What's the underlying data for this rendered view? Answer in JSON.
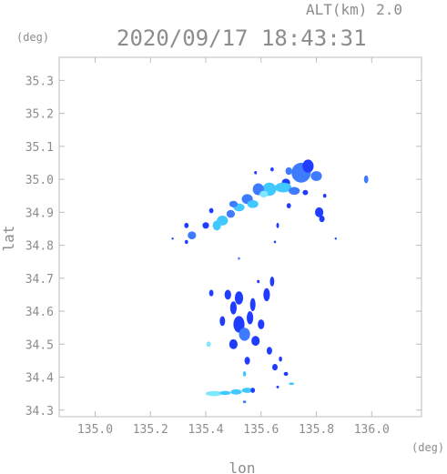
{
  "header": {
    "altitude_label": "ALT(km) 2.0",
    "timestamp": "2020/09/17 18:43:31",
    "y_unit": "(deg)",
    "x_unit": "(deg)"
  },
  "chart_data": {
    "type": "scatter",
    "title": "2020/09/17 18:43:31",
    "subtitle": "ALT(km) 2.0",
    "xlabel": "lon",
    "ylabel": "lat",
    "xlim": [
      134.87,
      136.18
    ],
    "ylim": [
      34.28,
      35.37
    ],
    "x_ticks": [
      135.0,
      135.2,
      135.4,
      135.6,
      135.8,
      136.0
    ],
    "y_ticks": [
      34.3,
      34.4,
      34.5,
      34.6,
      34.7,
      34.8,
      34.9,
      35.0,
      35.1,
      35.2,
      35.3
    ],
    "x_tick_labels": [
      "135.0",
      "135.2",
      "135.4",
      "135.6",
      "135.8",
      "136.0"
    ],
    "y_tick_labels": [
      "34.3",
      "34.4",
      "34.5",
      "34.6",
      "34.7",
      "34.8",
      "34.9",
      "35.0",
      "35.1",
      "35.2",
      "35.3"
    ],
    "grid": false,
    "colors": {
      "low": "#1f3cff",
      "mid": "#3f7bff",
      "high": "#40c8ff",
      "peak": "#7fe8ff"
    },
    "echo_cells": [
      {
        "lon": 135.745,
        "lat": 35.02,
        "rx": 0.035,
        "ry": 0.03,
        "level": "mid"
      },
      {
        "lon": 135.77,
        "lat": 35.04,
        "rx": 0.02,
        "ry": 0.02,
        "level": "low"
      },
      {
        "lon": 135.8,
        "lat": 35.01,
        "rx": 0.02,
        "ry": 0.015,
        "level": "mid"
      },
      {
        "lon": 135.7,
        "lat": 35.025,
        "rx": 0.012,
        "ry": 0.012,
        "level": "mid"
      },
      {
        "lon": 135.69,
        "lat": 34.99,
        "rx": 0.015,
        "ry": 0.012,
        "level": "low"
      },
      {
        "lon": 135.68,
        "lat": 34.975,
        "rx": 0.03,
        "ry": 0.015,
        "level": "high"
      },
      {
        "lon": 135.72,
        "lat": 34.965,
        "rx": 0.02,
        "ry": 0.012,
        "level": "mid"
      },
      {
        "lon": 135.76,
        "lat": 34.96,
        "rx": 0.01,
        "ry": 0.008,
        "level": "low"
      },
      {
        "lon": 135.63,
        "lat": 34.97,
        "rx": 0.025,
        "ry": 0.02,
        "level": "high"
      },
      {
        "lon": 135.59,
        "lat": 34.97,
        "rx": 0.02,
        "ry": 0.018,
        "level": "mid"
      },
      {
        "lon": 135.61,
        "lat": 34.955,
        "rx": 0.015,
        "ry": 0.01,
        "level": "peak"
      },
      {
        "lon": 135.55,
        "lat": 34.94,
        "rx": 0.02,
        "ry": 0.015,
        "level": "mid"
      },
      {
        "lon": 135.57,
        "lat": 34.925,
        "rx": 0.02,
        "ry": 0.012,
        "level": "high"
      },
      {
        "lon": 135.52,
        "lat": 34.915,
        "rx": 0.02,
        "ry": 0.012,
        "level": "high"
      },
      {
        "lon": 135.5,
        "lat": 34.925,
        "rx": 0.015,
        "ry": 0.01,
        "level": "mid"
      },
      {
        "lon": 135.46,
        "lat": 34.875,
        "rx": 0.02,
        "ry": 0.015,
        "level": "high"
      },
      {
        "lon": 135.49,
        "lat": 34.895,
        "rx": 0.015,
        "ry": 0.012,
        "level": "mid"
      },
      {
        "lon": 135.44,
        "lat": 34.86,
        "rx": 0.015,
        "ry": 0.015,
        "level": "high"
      },
      {
        "lon": 135.4,
        "lat": 34.86,
        "rx": 0.012,
        "ry": 0.01,
        "level": "low"
      },
      {
        "lon": 135.35,
        "lat": 34.83,
        "rx": 0.015,
        "ry": 0.012,
        "level": "mid"
      },
      {
        "lon": 135.33,
        "lat": 34.86,
        "rx": 0.008,
        "ry": 0.008,
        "level": "low"
      },
      {
        "lon": 135.33,
        "lat": 34.81,
        "rx": 0.006,
        "ry": 0.006,
        "level": "low"
      },
      {
        "lon": 135.42,
        "lat": 34.905,
        "rx": 0.008,
        "ry": 0.008,
        "level": "low"
      },
      {
        "lon": 135.81,
        "lat": 34.9,
        "rx": 0.015,
        "ry": 0.015,
        "level": "low"
      },
      {
        "lon": 135.82,
        "lat": 34.88,
        "rx": 0.01,
        "ry": 0.01,
        "level": "low"
      },
      {
        "lon": 135.83,
        "lat": 34.95,
        "rx": 0.006,
        "ry": 0.006,
        "level": "low"
      },
      {
        "lon": 135.98,
        "lat": 35.0,
        "rx": 0.008,
        "ry": 0.012,
        "level": "mid"
      },
      {
        "lon": 135.64,
        "lat": 35.03,
        "rx": 0.006,
        "ry": 0.006,
        "level": "low"
      },
      {
        "lon": 135.58,
        "lat": 35.02,
        "rx": 0.005,
        "ry": 0.005,
        "level": "low"
      },
      {
        "lon": 135.66,
        "lat": 34.86,
        "rx": 0.005,
        "ry": 0.008,
        "level": "low"
      },
      {
        "lon": 135.65,
        "lat": 34.81,
        "rx": 0.004,
        "ry": 0.004,
        "level": "low"
      },
      {
        "lon": 135.52,
        "lat": 34.76,
        "rx": 0.004,
        "ry": 0.004,
        "level": "mid"
      },
      {
        "lon": 135.42,
        "lat": 34.655,
        "rx": 0.008,
        "ry": 0.01,
        "level": "low"
      },
      {
        "lon": 135.48,
        "lat": 34.65,
        "rx": 0.012,
        "ry": 0.015,
        "level": "low"
      },
      {
        "lon": 135.52,
        "lat": 34.64,
        "rx": 0.015,
        "ry": 0.02,
        "level": "low"
      },
      {
        "lon": 135.5,
        "lat": 34.61,
        "rx": 0.012,
        "ry": 0.02,
        "level": "low"
      },
      {
        "lon": 135.57,
        "lat": 34.62,
        "rx": 0.01,
        "ry": 0.02,
        "level": "low"
      },
      {
        "lon": 135.56,
        "lat": 34.58,
        "rx": 0.012,
        "ry": 0.02,
        "level": "low"
      },
      {
        "lon": 135.62,
        "lat": 34.65,
        "rx": 0.012,
        "ry": 0.02,
        "level": "low"
      },
      {
        "lon": 135.64,
        "lat": 34.69,
        "rx": 0.008,
        "ry": 0.015,
        "level": "low"
      },
      {
        "lon": 135.46,
        "lat": 34.57,
        "rx": 0.01,
        "ry": 0.015,
        "level": "low"
      },
      {
        "lon": 135.52,
        "lat": 34.56,
        "rx": 0.02,
        "ry": 0.025,
        "level": "low"
      },
      {
        "lon": 135.54,
        "lat": 34.53,
        "rx": 0.02,
        "ry": 0.02,
        "level": "mid"
      },
      {
        "lon": 135.58,
        "lat": 34.51,
        "rx": 0.015,
        "ry": 0.015,
        "level": "low"
      },
      {
        "lon": 135.5,
        "lat": 34.5,
        "rx": 0.015,
        "ry": 0.015,
        "level": "low"
      },
      {
        "lon": 135.6,
        "lat": 34.56,
        "rx": 0.012,
        "ry": 0.015,
        "level": "low"
      },
      {
        "lon": 135.41,
        "lat": 34.5,
        "rx": 0.008,
        "ry": 0.008,
        "level": "peak"
      },
      {
        "lon": 135.63,
        "lat": 34.48,
        "rx": 0.01,
        "ry": 0.012,
        "level": "low"
      },
      {
        "lon": 135.55,
        "lat": 34.45,
        "rx": 0.01,
        "ry": 0.012,
        "level": "low"
      },
      {
        "lon": 135.65,
        "lat": 34.43,
        "rx": 0.01,
        "ry": 0.01,
        "level": "low"
      },
      {
        "lon": 135.54,
        "lat": 34.41,
        "rx": 0.006,
        "ry": 0.008,
        "level": "high"
      },
      {
        "lon": 135.69,
        "lat": 34.41,
        "rx": 0.008,
        "ry": 0.006,
        "level": "low"
      },
      {
        "lon": 135.67,
        "lat": 34.455,
        "rx": 0.006,
        "ry": 0.008,
        "level": "low"
      },
      {
        "lon": 135.43,
        "lat": 34.35,
        "rx": 0.03,
        "ry": 0.008,
        "level": "peak"
      },
      {
        "lon": 135.47,
        "lat": 34.352,
        "rx": 0.02,
        "ry": 0.006,
        "level": "high"
      },
      {
        "lon": 135.51,
        "lat": 34.355,
        "rx": 0.02,
        "ry": 0.008,
        "level": "high"
      },
      {
        "lon": 135.55,
        "lat": 34.36,
        "rx": 0.02,
        "ry": 0.008,
        "level": "high"
      },
      {
        "lon": 135.57,
        "lat": 34.36,
        "rx": 0.008,
        "ry": 0.008,
        "level": "low"
      },
      {
        "lon": 135.54,
        "lat": 34.325,
        "rx": 0.006,
        "ry": 0.004,
        "level": "mid"
      },
      {
        "lon": 135.71,
        "lat": 34.38,
        "rx": 0.01,
        "ry": 0.004,
        "level": "high"
      },
      {
        "lon": 135.66,
        "lat": 34.37,
        "rx": 0.005,
        "ry": 0.004,
        "level": "low"
      },
      {
        "lon": 135.59,
        "lat": 34.69,
        "rx": 0.005,
        "ry": 0.005,
        "level": "low"
      },
      {
        "lon": 135.7,
        "lat": 34.92,
        "rx": 0.008,
        "ry": 0.008,
        "level": "low"
      },
      {
        "lon": 135.28,
        "lat": 34.82,
        "rx": 0.004,
        "ry": 0.003,
        "level": "low"
      },
      {
        "lon": 135.87,
        "lat": 34.82,
        "rx": 0.004,
        "ry": 0.003,
        "level": "low"
      }
    ]
  }
}
